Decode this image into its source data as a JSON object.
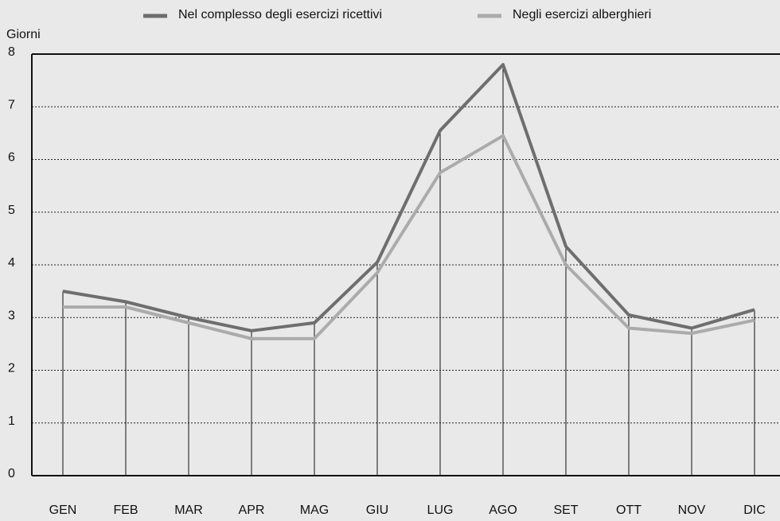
{
  "chart_data": {
    "type": "line",
    "y_label": "Giorni",
    "categories": [
      "GEN",
      "FEB",
      "MAR",
      "APR",
      "MAG",
      "GIU",
      "LUG",
      "AGO",
      "SET",
      "OTT",
      "NOV",
      "DIC"
    ],
    "series": [
      {
        "name": "Nel complesso degli esercizi ricettivi",
        "color": "#6e6e6e",
        "values": [
          3.5,
          3.3,
          3.0,
          2.75,
          2.9,
          4.05,
          6.55,
          7.8,
          4.35,
          3.05,
          2.8,
          3.15
        ]
      },
      {
        "name": "Negli esercizi alberghieri",
        "color": "#ababab",
        "values": [
          3.2,
          3.2,
          2.9,
          2.6,
          2.6,
          3.85,
          5.75,
          6.45,
          4.0,
          2.8,
          2.7,
          2.95
        ]
      }
    ],
    "ylim": [
      0,
      8
    ],
    "yticks": [
      0,
      1,
      2,
      3,
      4,
      5,
      6,
      7,
      8
    ],
    "grid": true
  }
}
